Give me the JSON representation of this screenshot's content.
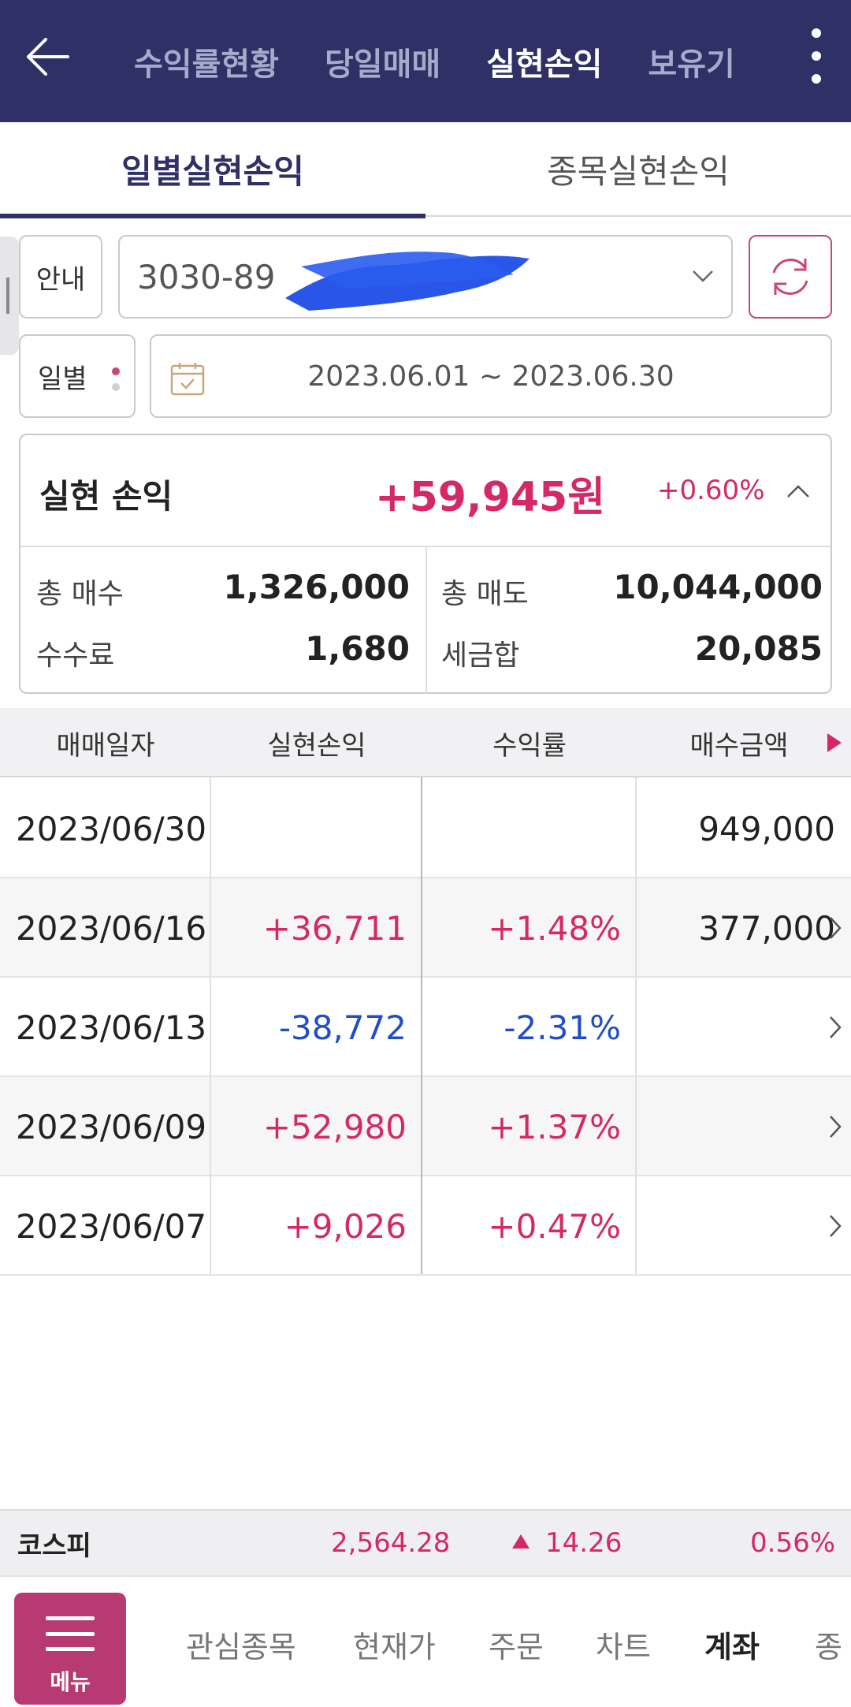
{
  "header": {
    "tabs": [
      {
        "label": "수익률현황"
      },
      {
        "label": "당일매매"
      },
      {
        "label": "실현손익"
      },
      {
        "label": "보유기"
      }
    ],
    "active_tab": "실현손익"
  },
  "subtabs": [
    {
      "label": "일별실현손익"
    },
    {
      "label": "종목실현손익"
    }
  ],
  "account": {
    "info_label": "안내",
    "number": "3030-89"
  },
  "filter": {
    "period_label": "일별",
    "date_range": "2023.06.01 ~ 2023.06.30"
  },
  "summary": {
    "title": "실현 손익",
    "amount": "+59,945원",
    "rate": "+0.60%",
    "total_buy_label": "총 매수",
    "total_buy": "1,326,000",
    "total_sell_label": "총 매도",
    "total_sell": "10,044,000",
    "fee_label": "수수료",
    "fee": "1,680",
    "tax_label": "세금합",
    "tax": "20,085"
  },
  "table": {
    "headers": [
      "매매일자",
      "실현손익",
      "수익률",
      "매수금액"
    ],
    "rows": [
      {
        "date": "2023/06/30",
        "pnl": "",
        "rate": "",
        "buy": "949,000"
      },
      {
        "date": "2023/06/16",
        "pnl": "+36,711",
        "rate": "+1.48%",
        "buy": "377,000"
      },
      {
        "date": "2023/06/13",
        "pnl": "-38,772",
        "rate": "-2.31%",
        "buy": ""
      },
      {
        "date": "2023/06/09",
        "pnl": "+52,980",
        "rate": "+1.37%",
        "buy": ""
      },
      {
        "date": "2023/06/07",
        "pnl": "+9,026",
        "rate": "+0.47%",
        "buy": ""
      }
    ]
  },
  "ticker": {
    "name": "코스피",
    "price": "2,564.28",
    "change": "14.26",
    "rate": "0.56%"
  },
  "bottom_nav": {
    "menu_label": "메뉴",
    "items": [
      {
        "label": "관심종목"
      },
      {
        "label": "현재가"
      },
      {
        "label": "주문"
      },
      {
        "label": "차트"
      },
      {
        "label": "계좌"
      },
      {
        "label": "종"
      }
    ],
    "active": "계좌"
  },
  "colors": {
    "header_bg": "#2f3166",
    "positive": "#d52866",
    "negative": "#1f4fc6",
    "menu_bg": "#b83a73"
  }
}
